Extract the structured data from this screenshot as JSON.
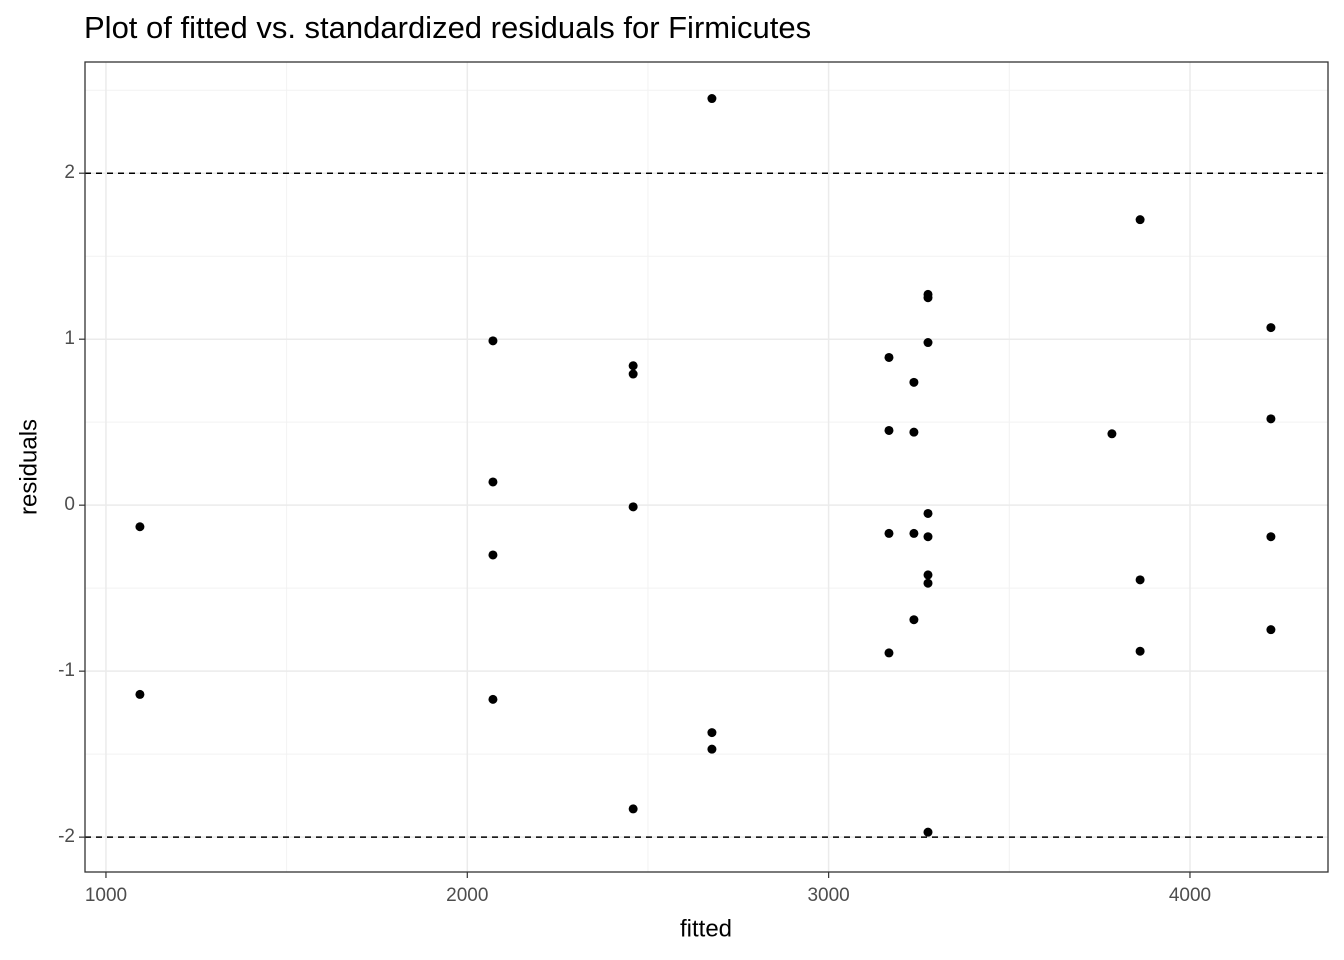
{
  "chart_data": {
    "type": "scatter",
    "title": "Plot of fitted vs. standardized residuals for Firmicutes",
    "x_label": "fitted",
    "y_label": "residuals",
    "x": [
      1094,
      1094,
      2071,
      2071,
      2071,
      2071,
      2459,
      2459,
      2459,
      2459,
      2677,
      2677,
      2677,
      3167,
      3167,
      3167,
      3167,
      3236,
      3236,
      3236,
      3236,
      3275,
      3275,
      3275,
      3275,
      3275,
      3275,
      3275,
      3275,
      3784,
      3862,
      3862,
      3862,
      4224,
      4224,
      4224,
      4224
    ],
    "values": [
      -0.13,
      -1.14,
      0.99,
      0.14,
      -0.3,
      -1.17,
      0.84,
      0.79,
      -0.01,
      -1.83,
      2.45,
      -1.37,
      -1.47,
      0.89,
      0.45,
      -0.17,
      -0.89,
      0.74,
      0.44,
      -0.17,
      -0.69,
      1.27,
      1.25,
      0.98,
      -0.05,
      -0.19,
      -0.42,
      -0.47,
      -1.97,
      0.43,
      1.72,
      -0.45,
      -0.88,
      1.07,
      0.52,
      -0.19,
      -0.75
    ],
    "color": "#000000",
    "xlim": [
      942,
      4382
    ],
    "xticks": [
      1000,
      2000,
      3000,
      4000
    ],
    "x_minor_grid": [
      1500,
      2500,
      3500
    ],
    "ylim": [
      -2.21,
      2.67
    ],
    "yticks": [
      -2,
      -1,
      0,
      1,
      2
    ],
    "y_minor_grid": [
      -1.5,
      -0.5,
      0.5,
      1.5,
      2.5
    ],
    "hlines": [
      2,
      -2
    ],
    "grid": true
  }
}
